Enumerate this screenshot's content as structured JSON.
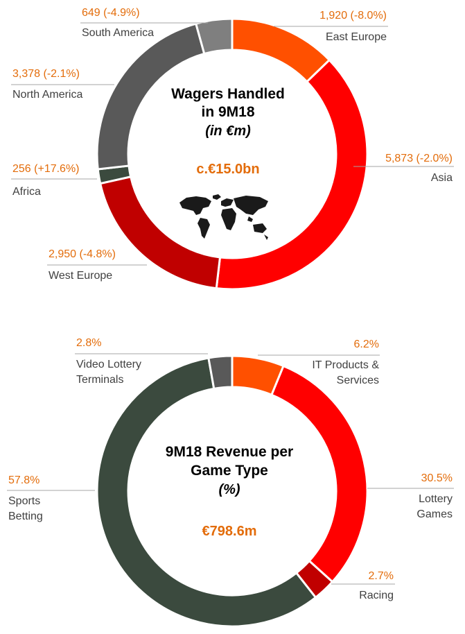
{
  "chart_data": [
    {
      "type": "pie",
      "variant": "donut",
      "title_lines": [
        "Wagers Handled",
        "in 9M18"
      ],
      "subtitle": "(in €m)",
      "total_label": "c.€15.0bn",
      "categories": [
        "East Europe",
        "Asia",
        "West Europe",
        "Africa",
        "North America",
        "South America"
      ],
      "values": [
        1920,
        5873,
        2950,
        256,
        3378,
        649
      ],
      "value_labels": [
        "1,920 (-8.0%)",
        "5,873 (-2.0%)",
        "2,950 (-4.8%)",
        "256 (+17.6%)",
        "3,378 (-2.1%)",
        "649 (-4.9%)"
      ],
      "colors": [
        "#ff5000",
        "#ff0000",
        "#c00000",
        "#3b4a3e",
        "#595959",
        "#7f7f7f"
      ],
      "center_icon": "world-map-icon",
      "legend": "none"
    },
    {
      "type": "pie",
      "variant": "donut",
      "title_lines": [
        "9M18 Revenue per",
        "Game Type"
      ],
      "subtitle": "(%)",
      "total_label": "€798.6m",
      "categories": [
        "IT Products & Services",
        "Lottery Games",
        "Racing",
        "Sports Betting",
        "Video Lottery Terminals"
      ],
      "label_lines": [
        [
          "IT Products &",
          "Services"
        ],
        [
          "Lottery",
          "Games"
        ],
        [
          "Racing"
        ],
        [
          "Sports",
          "Betting"
        ],
        [
          "Video Lottery",
          "Terminals"
        ]
      ],
      "values": [
        6.2,
        30.5,
        2.7,
        57.8,
        2.8
      ],
      "value_labels": [
        "6.2%",
        "30.5%",
        "2.7%",
        "57.8%",
        "2.8%"
      ],
      "colors": [
        "#ff5000",
        "#ff0000",
        "#c00000",
        "#3b4a3e",
        "#595959"
      ],
      "legend": "none"
    }
  ]
}
